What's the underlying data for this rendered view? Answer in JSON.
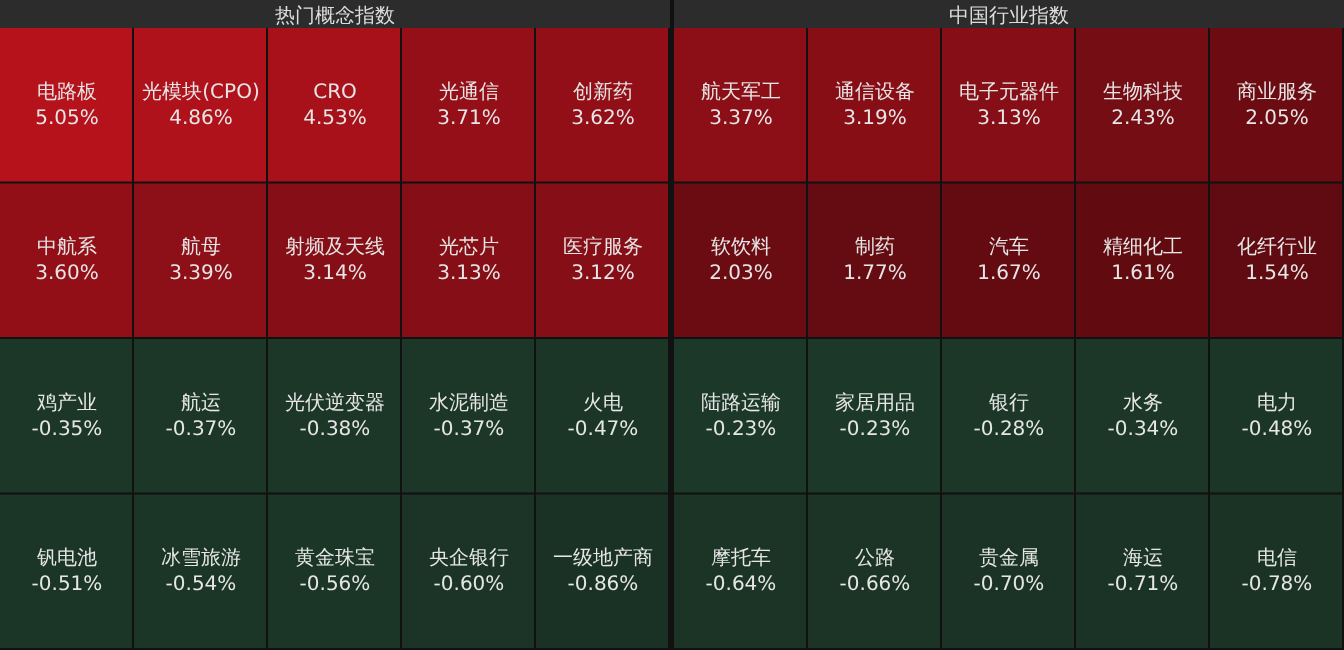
{
  "chart_data": [
    {
      "type": "other",
      "title": "热门概念指数",
      "categories": [
        "电路板",
        "光模块(CPO)",
        "CRO",
        "光通信",
        "创新药",
        "中航系",
        "航母",
        "射频及天线",
        "光芯片",
        "医疗服务",
        "鸡产业",
        "航运",
        "光伏逆变器",
        "水泥制造",
        "火电",
        "钒电池",
        "冰雪旅游",
        "黄金珠宝",
        "央企银行",
        "一级地产商"
      ],
      "values": [
        5.05,
        4.86,
        4.53,
        3.71,
        3.62,
        3.6,
        3.39,
        3.14,
        3.13,
        3.12,
        -0.35,
        -0.37,
        -0.38,
        -0.37,
        -0.47,
        -0.51,
        -0.54,
        -0.56,
        -0.6,
        -0.86
      ],
      "value_labels": [
        "5.05%",
        "4.86%",
        "4.53%",
        "3.71%",
        "3.62%",
        "3.60%",
        "3.39%",
        "3.14%",
        "3.13%",
        "3.12%",
        "-0.35%",
        "-0.37%",
        "-0.38%",
        "-0.37%",
        "-0.47%",
        "-0.51%",
        "-0.54%",
        "-0.56%",
        "-0.60%",
        "-0.86%"
      ]
    },
    {
      "type": "other",
      "title": "中国行业指数",
      "categories": [
        "航天军工",
        "通信设备",
        "电子元器件",
        "生物科技",
        "商业服务",
        "软饮料",
        "制药",
        "汽车",
        "精细化工",
        "化纤行业",
        "陆路运输",
        "家居用品",
        "银行",
        "水务",
        "电力",
        "摩托车",
        "公路",
        "贵金属",
        "海运",
        "电信"
      ],
      "values": [
        3.37,
        3.19,
        3.13,
        2.43,
        2.05,
        2.03,
        1.77,
        1.67,
        1.61,
        1.54,
        -0.23,
        -0.23,
        -0.28,
        -0.34,
        -0.48,
        -0.64,
        -0.66,
        -0.7,
        -0.71,
        -0.78
      ],
      "value_labels": [
        "3.37%",
        "3.19%",
        "3.13%",
        "2.43%",
        "2.05%",
        "2.03%",
        "1.77%",
        "1.67%",
        "1.61%",
        "1.54%",
        "-0.23%",
        "-0.23%",
        "-0.28%",
        "-0.34%",
        "-0.48%",
        "-0.64%",
        "-0.66%",
        "-0.70%",
        "-0.71%",
        "-0.78%"
      ]
    }
  ]
}
